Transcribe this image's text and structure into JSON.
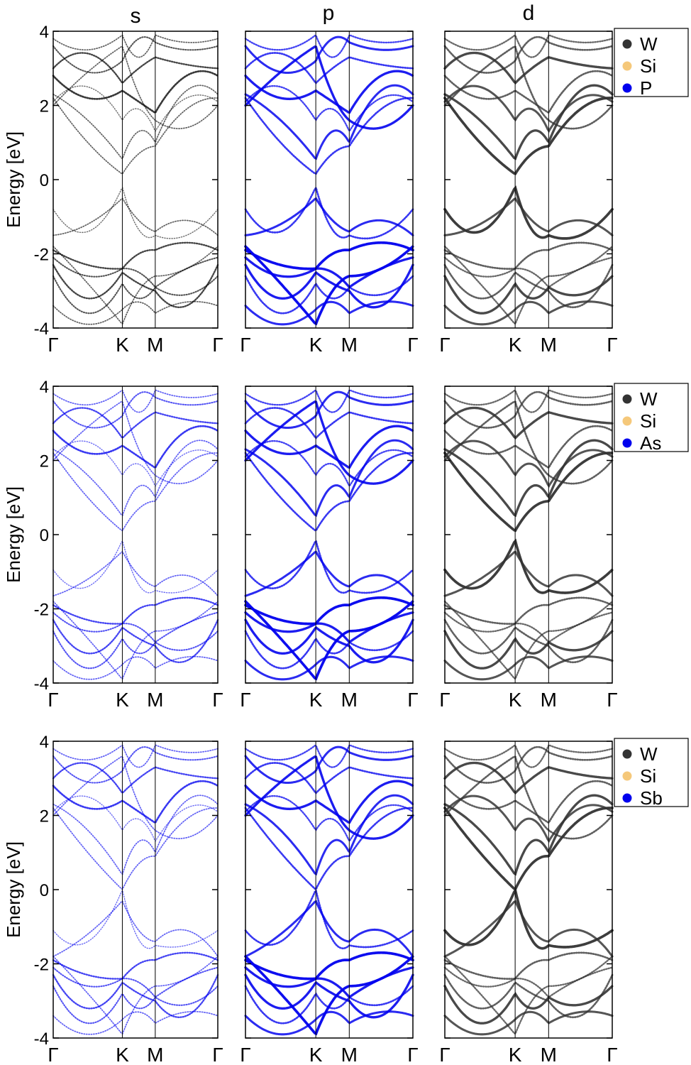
{
  "column_titles": [
    "s",
    "p",
    "d"
  ],
  "ylabel": "Energy [eV]",
  "legend_marker_colors": {
    "W": "#333333",
    "Si": "#f5c87a",
    "X": "#0000ee"
  },
  "chart_data": [
    {
      "type": "scatter",
      "row": 0,
      "xlabel": "",
      "ylabel": "Energy [eV]",
      "ylim": [
        -4,
        4
      ],
      "yticks": [
        "4",
        "2",
        "0",
        "-2",
        "-4"
      ],
      "high_symmetry_points": [
        "Γ",
        "K",
        "M",
        "Γ"
      ],
      "panels": [
        "s",
        "p",
        "d"
      ],
      "legend": {
        "placement": "right of d panel, top",
        "entries": [
          "W",
          "Si",
          "P"
        ]
      },
      "band_edges": {
        "conduction_min_at_K": 0.15,
        "valence_max_at_K": -0.2
      },
      "series": [
        {
          "name": "W",
          "color": "#333333"
        },
        {
          "name": "Si",
          "color": "#f5c87a"
        },
        {
          "name": "P",
          "color": "#0000ee"
        }
      ]
    },
    {
      "type": "scatter",
      "row": 1,
      "xlabel": "",
      "ylabel": "Energy [eV]",
      "ylim": [
        -4,
        4
      ],
      "yticks": [
        "4",
        "2",
        "0",
        "-2",
        "-4"
      ],
      "high_symmetry_points": [
        "Γ",
        "K",
        "M",
        "Γ"
      ],
      "panels": [
        "s",
        "p",
        "d"
      ],
      "legend": {
        "placement": "right of d panel, top",
        "entries": [
          "W",
          "Si",
          "As"
        ]
      },
      "band_edges": {
        "conduction_min_at_K": 0.1,
        "valence_max_at_K": -0.15
      },
      "series": [
        {
          "name": "W",
          "color": "#333333"
        },
        {
          "name": "Si",
          "color": "#f5c87a"
        },
        {
          "name": "As",
          "color": "#0000ee"
        }
      ]
    },
    {
      "type": "scatter",
      "row": 2,
      "xlabel": "",
      "ylabel": "Energy [eV]",
      "ylim": [
        -4,
        4
      ],
      "yticks": [
        "4",
        "2",
        "0",
        "-2",
        "-4"
      ],
      "high_symmetry_points": [
        "Γ",
        "K",
        "M",
        "Γ"
      ],
      "panels": [
        "s",
        "p",
        "d"
      ],
      "legend": {
        "placement": "right of d panel, top",
        "entries": [
          "W",
          "Si",
          "Sb"
        ]
      },
      "band_edges": {
        "conduction_min_at_K": 0.0,
        "valence_max_at_K": 0.0
      },
      "series": [
        {
          "name": "W",
          "color": "#333333"
        },
        {
          "name": "Si",
          "color": "#f5c87a"
        },
        {
          "name": "Sb",
          "color": "#0000ee"
        }
      ]
    }
  ]
}
